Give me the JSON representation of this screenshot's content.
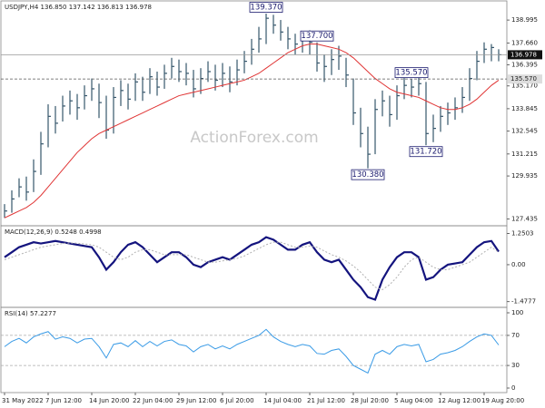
{
  "chart_data": [
    {
      "type": "ohlc",
      "title": "USDJPY,H4 136.850 137.142 136.813 136.978",
      "watermark": "ActionForex.com",
      "categories": [
        "31 May 2022",
        null,
        null,
        null,
        null,
        null,
        "7 Jun 12:00",
        null,
        null,
        null,
        null,
        null,
        "14 Jun 20:00",
        null,
        null,
        null,
        null,
        null,
        "22 Jun 04:00",
        null,
        null,
        null,
        null,
        null,
        "29 Jun 12:00",
        null,
        null,
        null,
        null,
        null,
        "6 Jul 20:00",
        null,
        null,
        null,
        null,
        null,
        "14 Jul 04:00",
        null,
        null,
        null,
        null,
        null,
        "21 Jul 12:00",
        null,
        null,
        null,
        null,
        null,
        "28 Jul 20:00",
        null,
        null,
        null,
        null,
        null,
        "5 Aug 04:00",
        null,
        null,
        null,
        null,
        null,
        "12 Aug 12:00",
        null,
        null,
        null,
        null,
        null,
        "19 Aug 20:00",
        null,
        null
      ],
      "high": [
        128.3,
        129.1,
        129.8,
        129.9,
        130.9,
        132.5,
        134.1,
        134.0,
        134.6,
        134.9,
        134.7,
        135.2,
        135.6,
        135.3,
        134.6,
        135.1,
        135.5,
        135.3,
        135.9,
        135.7,
        136.2,
        136.0,
        136.4,
        136.8,
        136.7,
        136.5,
        136.1,
        136.2,
        136.6,
        136.4,
        136.5,
        136.3,
        136.7,
        137.2,
        137.9,
        138.6,
        139.37,
        139.3,
        139.0,
        138.6,
        138.2,
        138.3,
        138.4,
        137.7,
        137.0,
        137.3,
        137.5,
        136.8,
        135.6,
        133.9,
        132.8,
        134.4,
        134.9,
        134.6,
        135.2,
        135.8,
        135.57,
        135.9,
        135.4,
        133.5,
        134.0,
        134.2,
        134.5,
        135.1,
        136.2,
        137.2,
        137.7,
        137.6,
        137.3
      ],
      "low": [
        127.5,
        127.8,
        128.7,
        128.5,
        129.0,
        130.0,
        131.6,
        132.4,
        133.1,
        133.5,
        133.2,
        133.8,
        134.3,
        133.3,
        132.1,
        132.4,
        134.0,
        133.8,
        134.3,
        134.3,
        134.7,
        134.6,
        135.0,
        135.6,
        135.4,
        135.2,
        134.5,
        134.7,
        135.4,
        134.9,
        135.1,
        134.8,
        135.2,
        135.9,
        136.4,
        137.1,
        137.6,
        138.2,
        137.8,
        137.3,
        137.0,
        137.1,
        137.0,
        136.0,
        135.4,
        135.8,
        136.1,
        135.1,
        132.9,
        131.6,
        130.38,
        131.2,
        133.4,
        132.8,
        133.2,
        134.4,
        134.5,
        134.6,
        131.72,
        131.9,
        132.5,
        132.9,
        133.2,
        133.6,
        134.3,
        135.5,
        136.5,
        136.6,
        136.6
      ],
      "close": [
        127.9,
        128.6,
        129.3,
        129.0,
        130.2,
        131.8,
        133.4,
        133.0,
        134.0,
        134.3,
        133.9,
        134.6,
        135.0,
        134.2,
        132.6,
        134.5,
        134.9,
        134.4,
        135.4,
        134.8,
        135.7,
        135.1,
        135.9,
        136.3,
        136.0,
        135.9,
        135.0,
        135.6,
        136.0,
        135.5,
        135.9,
        135.4,
        136.1,
        136.6,
        137.3,
        137.9,
        139.1,
        138.7,
        138.3,
        137.9,
        137.6,
        137.8,
        137.7,
        136.5,
        136.3,
        136.7,
        136.9,
        135.8,
        133.6,
        132.4,
        131.2,
        133.8,
        134.3,
        133.5,
        134.6,
        135.2,
        135.1,
        135.3,
        132.4,
        132.7,
        133.4,
        133.6,
        133.9,
        134.5,
        135.6,
        136.6,
        137.3,
        137.4,
        136.978
      ],
      "ma": [
        127.5,
        127.7,
        127.9,
        128.1,
        128.4,
        128.8,
        129.3,
        129.8,
        130.3,
        130.8,
        131.3,
        131.7,
        132.1,
        132.4,
        132.6,
        132.8,
        133.0,
        133.2,
        133.4,
        133.6,
        133.8,
        134.0,
        134.2,
        134.4,
        134.6,
        134.7,
        134.8,
        134.9,
        135.0,
        135.1,
        135.2,
        135.3,
        135.4,
        135.5,
        135.7,
        135.9,
        136.2,
        136.5,
        136.8,
        137.1,
        137.3,
        137.5,
        137.6,
        137.6,
        137.5,
        137.4,
        137.3,
        137.1,
        136.8,
        136.4,
        136.0,
        135.6,
        135.3,
        135.0,
        134.8,
        134.7,
        134.6,
        134.5,
        134.3,
        134.1,
        133.9,
        133.8,
        133.8,
        133.9,
        134.1,
        134.4,
        134.8,
        135.2,
        135.5
      ],
      "bar_color": "#36566b",
      "ma_color": "#e03535",
      "ylim": [
        127.2,
        139.95
      ],
      "yticks": [
        138.995,
        {
          "value": 137.66,
          "label": "137.660"
        },
        136.395,
        {
          "value": 135.17,
          "label": "135.170"
        },
        133.845,
        132.545,
        131.215,
        129.935,
        127.435
      ],
      "current": {
        "value": 136.978,
        "label": "136.978"
      },
      "level": {
        "value": 135.57,
        "label": "135.570"
      },
      "annotations": [
        {
          "label": "139.370",
          "value": 139.37
        },
        {
          "label": "130.380",
          "value": 130.38
        },
        {
          "label": "135.570",
          "value": 135.57
        },
        {
          "label": "131.720",
          "value": 131.72
        },
        {
          "label": "137.700",
          "value": 137.7
        }
      ]
    },
    {
      "type": "line",
      "title": "MACD(12,26,9) 0.5248 0.4998",
      "series": [
        {
          "color": "#14147e",
          "values": [
            0.3,
            0.5,
            0.7,
            0.8,
            0.9,
            0.85,
            0.9,
            0.95,
            0.9,
            0.85,
            0.8,
            0.75,
            0.7,
            0.3,
            -0.2,
            0.1,
            0.5,
            0.8,
            0.9,
            0.7,
            0.4,
            0.1,
            0.3,
            0.5,
            0.5,
            0.3,
            0.0,
            -0.1,
            0.1,
            0.2,
            0.3,
            0.2,
            0.4,
            0.6,
            0.8,
            0.9,
            1.1,
            1.0,
            0.8,
            0.6,
            0.6,
            0.8,
            0.9,
            0.5,
            0.2,
            0.1,
            0.2,
            -0.2,
            -0.6,
            -0.9,
            -1.3,
            -1.4,
            -0.6,
            -0.1,
            0.3,
            0.5,
            0.5,
            0.3,
            -0.6,
            -0.5,
            -0.2,
            0.0,
            0.05,
            0.1,
            0.4,
            0.7,
            0.9,
            0.95,
            0.5248
          ]
        },
        {
          "color": "#b0b0b0",
          "dashed": true,
          "values": [
            0.2,
            0.3,
            0.4,
            0.5,
            0.6,
            0.7,
            0.75,
            0.8,
            0.85,
            0.87,
            0.86,
            0.83,
            0.8,
            0.7,
            0.5,
            0.3,
            0.2,
            0.3,
            0.5,
            0.6,
            0.6,
            0.5,
            0.4,
            0.4,
            0.4,
            0.4,
            0.3,
            0.2,
            0.1,
            0.1,
            0.15,
            0.2,
            0.25,
            0.35,
            0.5,
            0.65,
            0.8,
            0.9,
            0.9,
            0.8,
            0.7,
            0.7,
            0.75,
            0.7,
            0.55,
            0.4,
            0.3,
            0.15,
            -0.05,
            -0.3,
            -0.6,
            -0.9,
            -1.0,
            -0.8,
            -0.5,
            -0.1,
            0.2,
            0.3,
            0.1,
            -0.1,
            -0.2,
            -0.2,
            -0.1,
            0.0,
            0.1,
            0.3,
            0.5,
            0.7,
            0.4998
          ]
        }
      ],
      "ylim": [
        -1.6,
        1.45
      ],
      "yticks": [
        1.2503,
        {
          "value": 0,
          "label": "0.00"
        },
        -1.4777
      ]
    },
    {
      "type": "line",
      "title": "RSI(14) 57.2277",
      "series": [
        {
          "color": "#3a9be6",
          "values": [
            55,
            62,
            66,
            60,
            68,
            72,
            75,
            65,
            68,
            66,
            60,
            65,
            66,
            55,
            40,
            58,
            60,
            55,
            63,
            55,
            62,
            56,
            62,
            64,
            58,
            56,
            48,
            55,
            58,
            52,
            56,
            52,
            58,
            62,
            66,
            70,
            78,
            68,
            62,
            58,
            55,
            58,
            56,
            46,
            45,
            50,
            52,
            42,
            30,
            25,
            20,
            45,
            50,
            45,
            55,
            58,
            56,
            58,
            35,
            38,
            45,
            47,
            50,
            55,
            62,
            68,
            72,
            70,
            57.2277
          ]
        }
      ],
      "ylim": [
        0,
        100
      ],
      "yticks": [
        100,
        70,
        30,
        0
      ],
      "levels": [
        70,
        30
      ]
    }
  ]
}
